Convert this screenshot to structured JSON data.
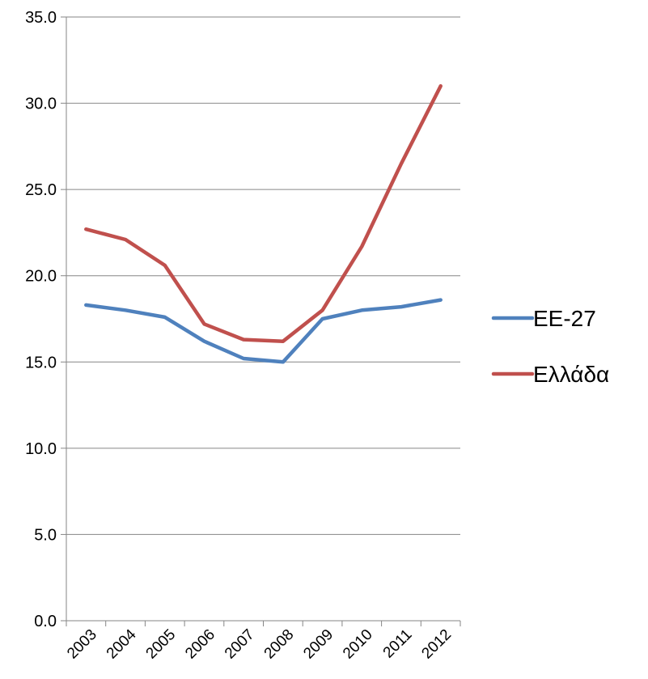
{
  "chart_data": {
    "type": "line",
    "title": "",
    "xlabel": "",
    "ylabel": "",
    "categories": [
      "2003",
      "2004",
      "2005",
      "2006",
      "2007",
      "2008",
      "2009",
      "2010",
      "2011",
      "2012"
    ],
    "ylim": [
      0,
      35
    ],
    "y_ticks": [
      "0.0",
      "5.0",
      "10.0",
      "15.0",
      "20.0",
      "25.0",
      "30.0",
      "35.0"
    ],
    "grid": true,
    "legend_position": "right",
    "series": [
      {
        "name": "ΕΕ-27",
        "color": "#4f81bd",
        "values": [
          18.3,
          18.0,
          17.6,
          16.2,
          15.2,
          15.0,
          17.5,
          18.0,
          18.2,
          18.6
        ]
      },
      {
        "name": "Ελλάδα",
        "color": "#c0504d",
        "values": [
          22.7,
          22.1,
          20.6,
          17.2,
          16.3,
          16.2,
          18.0,
          21.7,
          26.5,
          31.0
        ]
      }
    ]
  }
}
